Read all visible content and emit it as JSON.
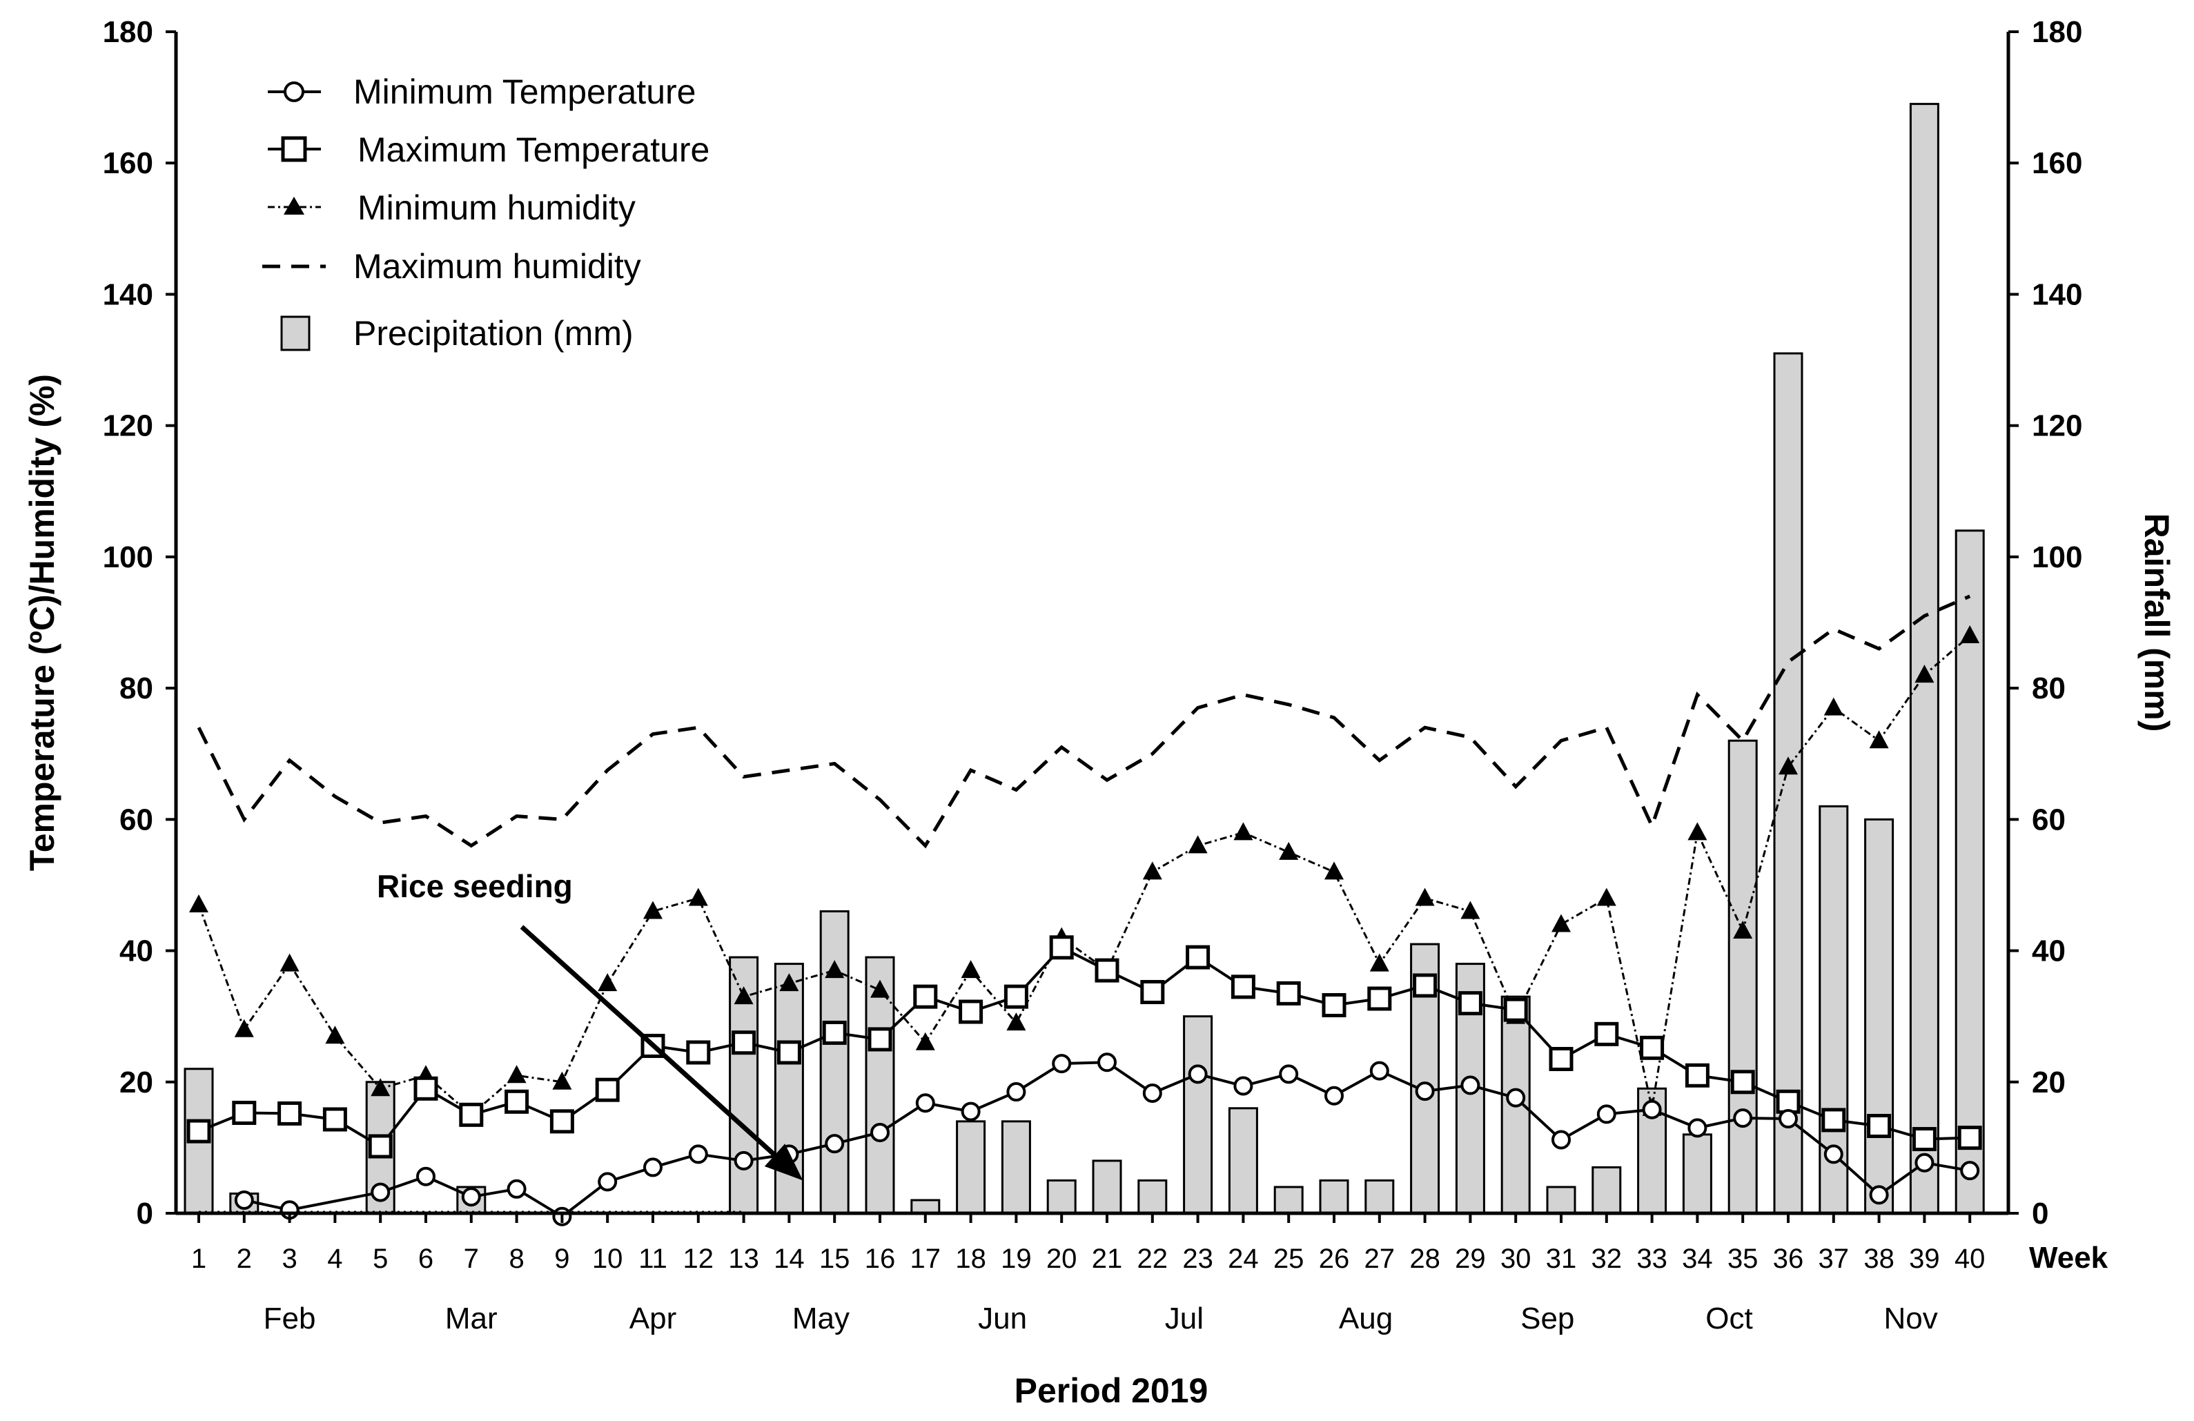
{
  "chart_data": {
    "type": "bar+line",
    "title": "",
    "xlabel": "Period 2019",
    "week_label": "Week",
    "ylabel_left": "Temperature (ºC)/Humidity (%)",
    "ylabel_right": "Rainfall (mm)",
    "ylim_left": [
      0,
      180
    ],
    "ylim_right": [
      0,
      180
    ],
    "yticks": [
      0,
      20,
      40,
      60,
      80,
      100,
      120,
      140,
      160,
      180
    ],
    "weeks": [
      1,
      2,
      3,
      4,
      5,
      6,
      7,
      8,
      9,
      10,
      11,
      12,
      13,
      14,
      15,
      16,
      17,
      18,
      19,
      20,
      21,
      22,
      23,
      24,
      25,
      26,
      27,
      28,
      29,
      30,
      31,
      32,
      33,
      34,
      35,
      36,
      37,
      38,
      39,
      40
    ],
    "months": [
      {
        "label": "Feb",
        "week": 3.0
      },
      {
        "label": "Mar",
        "week": 7.0
      },
      {
        "label": "Apr",
        "week": 11.0
      },
      {
        "label": "May",
        "week": 14.7
      },
      {
        "label": "Jun",
        "week": 18.7
      },
      {
        "label": "Jul",
        "week": 22.7
      },
      {
        "label": "Aug",
        "week": 26.7
      },
      {
        "label": "Sep",
        "week": 30.7
      },
      {
        "label": "Oct",
        "week": 34.7
      },
      {
        "label": "Nov",
        "week": 38.7
      }
    ],
    "series": [
      {
        "name": "Precipitation (mm)",
        "kind": "bar",
        "axis": "right",
        "values": [
          22,
          3,
          0,
          0,
          20,
          0,
          4,
          0,
          0,
          0,
          0,
          0,
          39,
          38,
          46,
          39,
          2,
          14,
          14,
          5,
          8,
          5,
          30,
          16,
          4,
          5,
          5,
          41,
          38,
          33,
          4,
          7,
          19,
          12,
          72,
          131,
          62,
          60,
          169,
          104
        ]
      },
      {
        "name": "Minimum Temperature",
        "kind": "line",
        "marker": "circle",
        "axis": "left",
        "values": [
          null,
          2,
          0.5,
          null,
          3.2,
          5.6,
          2.5,
          3.7,
          -0.5,
          4.8,
          7.0,
          9.0,
          8.0,
          9.0,
          10.6,
          12.3,
          16.8,
          15.5,
          18.5,
          22.8,
          23.0,
          18.3,
          21.2,
          19.4,
          21.2,
          17.9,
          21.7,
          18.6,
          19.5,
          17.6,
          11.2,
          15.1,
          15.8,
          13.0,
          14.5,
          14.4,
          9.0,
          2.8,
          7.7,
          6.5
        ]
      },
      {
        "name": "Maximum Temperature",
        "kind": "line",
        "marker": "square",
        "axis": "left",
        "values": [
          12.5,
          15.3,
          15.2,
          14.3,
          10.2,
          19.0,
          15.0,
          17.0,
          14.0,
          18.8,
          25.5,
          24.5,
          26.0,
          24.5,
          27.5,
          26.5,
          33.0,
          30.7,
          33.0,
          40.5,
          37.0,
          33.7,
          39.0,
          34.5,
          33.5,
          31.7,
          32.7,
          34.7,
          32.0,
          31.0,
          23.5,
          27.3,
          25.2,
          21.0,
          20.0,
          17.0,
          14.2,
          13.3,
          11.3,
          11.5
        ]
      },
      {
        "name": "Minimum humidity",
        "kind": "line",
        "marker": "triangle",
        "axis": "left",
        "values": [
          47,
          28,
          38,
          27,
          19,
          21,
          15,
          21,
          20,
          35,
          46,
          48,
          33,
          35,
          37,
          34,
          26,
          37,
          29,
          42,
          37,
          52,
          56,
          58,
          55,
          52,
          38,
          48,
          46,
          30,
          44,
          48,
          16,
          58,
          43,
          68,
          77,
          72,
          82,
          88
        ]
      },
      {
        "name": "Maximum humidity",
        "kind": "line",
        "marker": "none",
        "dash": true,
        "axis": "left",
        "values": [
          74,
          60,
          69,
          63.5,
          59.5,
          60.5,
          56,
          60.5,
          60,
          67.5,
          73,
          74,
          66.5,
          67.5,
          68.5,
          63,
          56,
          67.5,
          64.5,
          71,
          66,
          70,
          77,
          79,
          77.5,
          75.5,
          69,
          74,
          72.5,
          65,
          72,
          74,
          59,
          79,
          72,
          84,
          89,
          86,
          91,
          94
        ]
      }
    ],
    "annotations": [
      {
        "text": "Rice seeding",
        "arrow_to_week": 14,
        "arrow_to_value": 5
      }
    ],
    "legend_position": "top-left"
  }
}
